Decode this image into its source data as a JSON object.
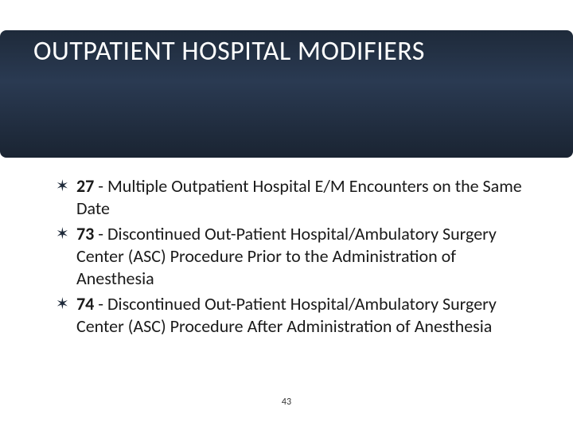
{
  "slide": {
    "title": "OUTPATIENT HOSPITAL MODIFIERS",
    "title_color": "#ffffff",
    "title_fontsize": 34,
    "header_band": {
      "gradient_top": "#1e2a3a",
      "gradient_mid": "#2a3a52",
      "gradient_bottom": "#1a2432",
      "corner_radius": 8,
      "height": 160
    },
    "background_color": "#ffffff",
    "bullets": [
      {
        "marker": "✶",
        "code": "27",
        "text": " - Multiple Outpatient Hospital E/M Encounters on the Same Date"
      },
      {
        "marker": "✶",
        "code": "73",
        "text": " - Discontinued Out-Patient Hospital/Ambulatory Surgery Center (ASC) Procedure Prior to the Administration of Anesthesia"
      },
      {
        "marker": "✶",
        "code": "74",
        "text": " - Discontinued Out-Patient Hospital/Ambulatory Surgery Center (ASC) Procedure After Administration of Anesthesia"
      }
    ],
    "bullet_marker_color": "#1e2a3a",
    "bullet_text_color": "#1a1a1a",
    "bullet_fontsize": 22,
    "page_number": "43",
    "page_number_fontsize": 12,
    "page_number_color": "#333333"
  }
}
